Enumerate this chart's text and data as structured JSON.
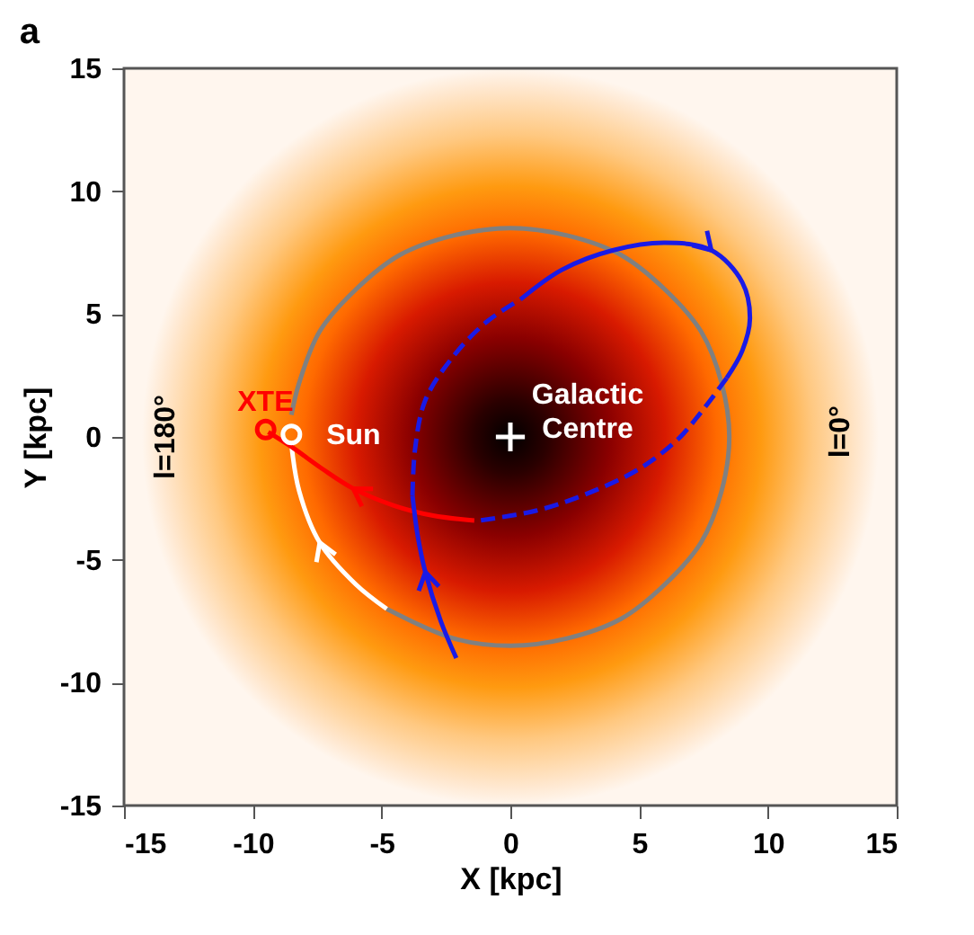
{
  "chart_data": {
    "type": "line",
    "title": "a",
    "xlabel": "X [kpc]",
    "ylabel": "Y [kpc]",
    "xlim": [
      -15,
      15
    ],
    "ylim": [
      -15,
      15
    ],
    "xticks": [
      -15,
      -10,
      -5,
      0,
      5,
      10,
      15
    ],
    "yticks": [
      -15,
      -10,
      -5,
      0,
      5,
      10,
      15
    ],
    "series": [
      {
        "color": "#808080",
        "line_style": "solid",
        "x": [
          -4.8,
          -2.2,
          0,
          2.2,
          4.3,
          6.0,
          7.4,
          8.2,
          8.5,
          8.2,
          7.4,
          6.0,
          4.3,
          2.2,
          0,
          -2.2,
          -4.3,
          -6.0,
          -7.4,
          -8.2,
          -8.5
        ],
        "values": [
          -7.0,
          -8.2,
          -8.5,
          -8.2,
          -7.4,
          -6.0,
          -4.3,
          -2.2,
          0,
          2.2,
          4.3,
          6.0,
          7.4,
          8.2,
          8.5,
          8.2,
          7.4,
          6.0,
          4.3,
          2.2,
          0.9
        ]
      },
      {
        "color": "#ffffff",
        "line_style": "solid",
        "x": [
          -8.5,
          -8.2,
          -7.4,
          -6.0,
          -4.8
        ],
        "values": [
          -0.3,
          -2.2,
          -4.3,
          -6.0,
          -7.0
        ]
      },
      {
        "color": "#ff0000",
        "line_style": "solid",
        "x": [
          -9.4,
          -8.5,
          -7.3,
          -6.1,
          -4.5,
          -3.0,
          -1.4
        ],
        "values": [
          0.2,
          -0.4,
          -1.3,
          -2.1,
          -2.8,
          -3.2,
          -3.4
        ]
      },
      {
        "color": "#1a1ae6",
        "line_style": "solid",
        "x": [
          -2.1,
          -2.7,
          -3.3,
          -3.6,
          -3.8
        ],
        "values": [
          -9.0,
          -7.5,
          -5.5,
          -4.0,
          -2.4
        ]
      },
      {
        "color": "#1a1ae6",
        "line_style": "dashed",
        "x": [
          -3.8,
          -3.7,
          -3.3,
          -2.2,
          -0.9,
          0.4
        ],
        "values": [
          -2.4,
          -0.5,
          1.5,
          3.3,
          4.7,
          5.6
        ]
      },
      {
        "color": "#1a1ae6",
        "line_style": "solid",
        "x": [
          0.4,
          2.0,
          4.0,
          6.0,
          7.8,
          9.0,
          9.3,
          9.0,
          8.4
        ],
        "values": [
          5.6,
          6.8,
          7.6,
          7.9,
          7.6,
          6.3,
          4.8,
          3.5,
          2.4
        ]
      },
      {
        "color": "#1a1ae6",
        "line_style": "dashed",
        "x": [
          8.4,
          7.4,
          6.5,
          5.0,
          3.0,
          1.0,
          -1.2
        ],
        "values": [
          2.4,
          1.0,
          -0.1,
          -1.3,
          -2.3,
          -3.0,
          -3.4
        ]
      },
      {
        "type": "scatter",
        "marker": "circle",
        "color": "#ff0000",
        "x": [
          -9.5
        ],
        "values": [
          0.3
        ]
      },
      {
        "type": "scatter",
        "marker": "circle",
        "color": "#ffffff",
        "x": [
          -8.5
        ],
        "values": [
          0.1
        ]
      },
      {
        "type": "scatter",
        "marker": "cross",
        "color": "#ffffff",
        "x": [
          0
        ],
        "values": [
          0
        ]
      }
    ],
    "annotations": [
      "XTE",
      "Sun",
      "Galactic Centre",
      "l=180°",
      "l=0°"
    ]
  }
}
